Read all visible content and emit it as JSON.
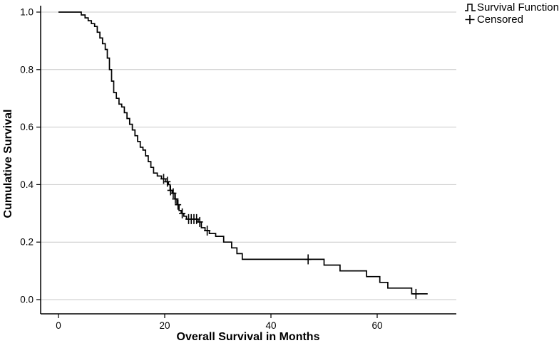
{
  "chart_data": {
    "type": "line",
    "subtype": "kaplan-meier-step",
    "title": "",
    "xlabel": "Overall Survival in Months",
    "ylabel": "Cumulative Survival",
    "xticks": [
      0,
      20,
      40,
      60
    ],
    "yticks": [
      "0.0",
      "0.2",
      "0.4",
      "0.6",
      "0.8",
      "1.0"
    ],
    "xlim": [
      -3.4,
      75
    ],
    "ylim": [
      0,
      1.04
    ],
    "grid": "horizontal-only",
    "legend_position": "top-right",
    "legend": [
      "Survival Function",
      "Censored"
    ],
    "end_month": 69.5,
    "series": [
      {
        "name": "Survival Function",
        "start": 1.0,
        "steps": [
          [
            4.3,
            0.99
          ],
          [
            5.0,
            0.98
          ],
          [
            5.6,
            0.97
          ],
          [
            6.2,
            0.96
          ],
          [
            6.8,
            0.95
          ],
          [
            7.3,
            0.93
          ],
          [
            7.8,
            0.91
          ],
          [
            8.3,
            0.89
          ],
          [
            8.8,
            0.87
          ],
          [
            9.2,
            0.84
          ],
          [
            9.6,
            0.8
          ],
          [
            10.0,
            0.76
          ],
          [
            10.4,
            0.72
          ],
          [
            10.9,
            0.7
          ],
          [
            11.4,
            0.68
          ],
          [
            11.9,
            0.67
          ],
          [
            12.4,
            0.65
          ],
          [
            12.9,
            0.63
          ],
          [
            13.4,
            0.61
          ],
          [
            13.9,
            0.59
          ],
          [
            14.4,
            0.57
          ],
          [
            14.9,
            0.55
          ],
          [
            15.4,
            0.53
          ],
          [
            15.9,
            0.52
          ],
          [
            16.4,
            0.5
          ],
          [
            16.9,
            0.48
          ],
          [
            17.4,
            0.46
          ],
          [
            17.9,
            0.44
          ],
          [
            18.6,
            0.43
          ],
          [
            19.4,
            0.42
          ],
          [
            20.2,
            0.41
          ],
          [
            20.7,
            0.4
          ],
          [
            21.0,
            0.38
          ],
          [
            21.4,
            0.37
          ],
          [
            21.9,
            0.35
          ],
          [
            22.3,
            0.33
          ],
          [
            22.7,
            0.31
          ],
          [
            23.1,
            0.3
          ],
          [
            23.6,
            0.29
          ],
          [
            24.1,
            0.28
          ],
          [
            26.3,
            0.27
          ],
          [
            26.9,
            0.25
          ],
          [
            27.6,
            0.24
          ],
          [
            28.4,
            0.23
          ],
          [
            29.6,
            0.22
          ],
          [
            31.1,
            0.2
          ],
          [
            32.6,
            0.18
          ],
          [
            33.6,
            0.16
          ],
          [
            34.6,
            0.14
          ],
          [
            50.0,
            0.12
          ],
          [
            53.0,
            0.1
          ],
          [
            58.0,
            0.08
          ],
          [
            60.5,
            0.06
          ],
          [
            62.0,
            0.04
          ],
          [
            66.5,
            0.02
          ]
        ]
      }
    ],
    "censored": [
      [
        19.8,
        0.42
      ],
      [
        20.5,
        0.41
      ],
      [
        21.1,
        0.38
      ],
      [
        21.6,
        0.37
      ],
      [
        22.0,
        0.35
      ],
      [
        22.5,
        0.33
      ],
      [
        23.3,
        0.3
      ],
      [
        24.5,
        0.28
      ],
      [
        25.0,
        0.28
      ],
      [
        25.5,
        0.28
      ],
      [
        26.0,
        0.28
      ],
      [
        26.6,
        0.27
      ],
      [
        28.0,
        0.24
      ],
      [
        47.0,
        0.14
      ],
      [
        67.3,
        0.02
      ]
    ]
  }
}
